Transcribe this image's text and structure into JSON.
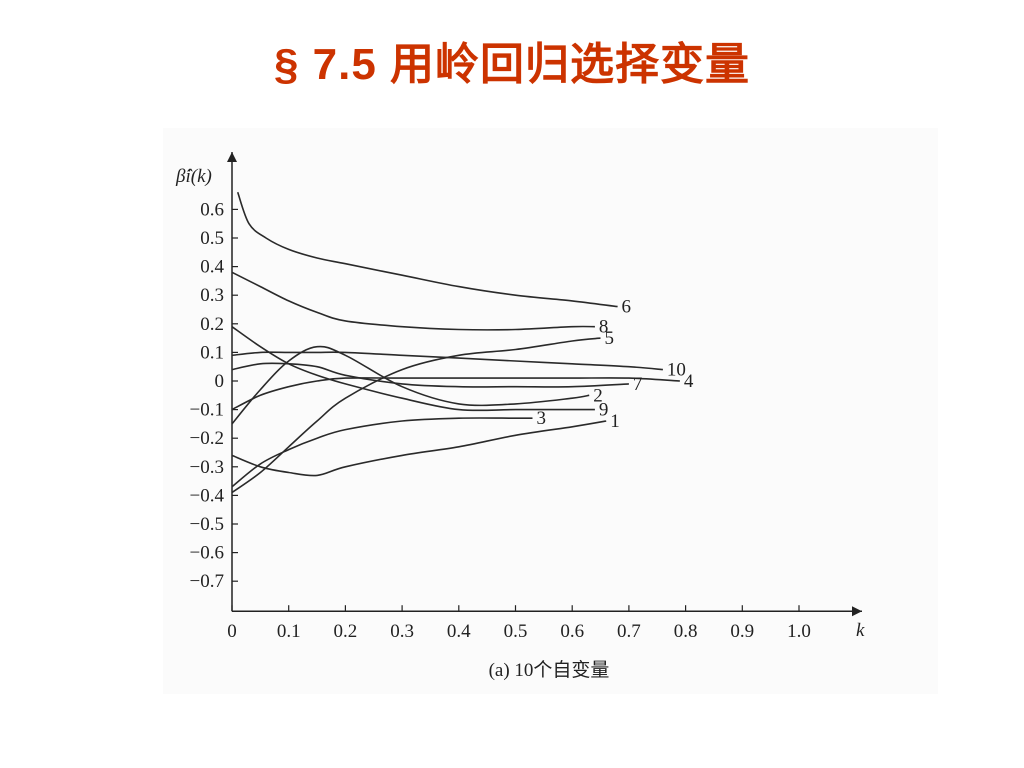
{
  "slide": {
    "title": "§ 7.5  用岭回归选择变量"
  },
  "chart_data": {
    "type": "line",
    "caption": "(a)  10个自变量",
    "xlabel": "k",
    "ylabel": "β̂i(k)",
    "xlim": [
      0,
      1.0
    ],
    "ylim": [
      -0.7,
      0.6
    ],
    "x_ticks": [
      "0",
      "0.1",
      "0.2",
      "0.3",
      "0.4",
      "0.5",
      "0.6",
      "0.7",
      "0.8",
      "0.9",
      "1.0"
    ],
    "y_ticks": [
      "0.6",
      "0.5",
      "0.4",
      "0.3",
      "0.2",
      "0.1",
      "0",
      "−0.1",
      "−0.2",
      "−0.3",
      "−0.4",
      "−0.5",
      "−0.6",
      "−0.7"
    ],
    "grid": false,
    "series": [
      {
        "name": "6",
        "x": [
          0.01,
          0.03,
          0.06,
          0.1,
          0.15,
          0.2,
          0.3,
          0.4,
          0.5,
          0.6,
          0.68
        ],
        "y": [
          0.66,
          0.55,
          0.5,
          0.46,
          0.43,
          0.41,
          0.37,
          0.33,
          0.3,
          0.28,
          0.26
        ]
      },
      {
        "name": "8",
        "x": [
          0,
          0.05,
          0.1,
          0.15,
          0.2,
          0.3,
          0.4,
          0.5,
          0.6,
          0.64
        ],
        "y": [
          0.38,
          0.33,
          0.28,
          0.24,
          0.21,
          0.19,
          0.18,
          0.18,
          0.19,
          0.19
        ]
      },
      {
        "name": "5",
        "x": [
          0,
          0.05,
          0.1,
          0.15,
          0.2,
          0.3,
          0.4,
          0.5,
          0.6,
          0.65
        ],
        "y": [
          -0.39,
          -0.32,
          -0.23,
          -0.14,
          -0.06,
          0.04,
          0.09,
          0.11,
          0.14,
          0.15
        ]
      },
      {
        "name": "10",
        "x": [
          0,
          0.05,
          0.1,
          0.15,
          0.2,
          0.3,
          0.4,
          0.5,
          0.6,
          0.7,
          0.76
        ],
        "y": [
          0.09,
          0.1,
          0.1,
          0.1,
          0.1,
          0.09,
          0.08,
          0.07,
          0.06,
          0.05,
          0.04
        ]
      },
      {
        "name": "4",
        "x": [
          0,
          0.05,
          0.1,
          0.15,
          0.2,
          0.3,
          0.4,
          0.5,
          0.6,
          0.7,
          0.79
        ],
        "y": [
          -0.1,
          -0.05,
          -0.02,
          0,
          0.01,
          0.01,
          0.01,
          0.01,
          0.01,
          0.01,
          0
        ]
      },
      {
        "name": "7",
        "x": [
          0,
          0.05,
          0.1,
          0.15,
          0.2,
          0.3,
          0.4,
          0.5,
          0.6,
          0.7
        ],
        "y": [
          0.04,
          0.06,
          0.06,
          0.05,
          0.02,
          -0.01,
          -0.02,
          -0.02,
          -0.02,
          -0.01
        ]
      },
      {
        "name": "2",
        "x": [
          0,
          0.05,
          0.1,
          0.15,
          0.2,
          0.3,
          0.4,
          0.5,
          0.6,
          0.63
        ],
        "y": [
          -0.15,
          -0.03,
          0.07,
          0.12,
          0.09,
          -0.02,
          -0.08,
          -0.08,
          -0.06,
          -0.05
        ]
      },
      {
        "name": "9",
        "x": [
          0,
          0.05,
          0.1,
          0.15,
          0.2,
          0.3,
          0.4,
          0.5,
          0.6,
          0.64
        ],
        "y": [
          0.19,
          0.12,
          0.06,
          0.02,
          -0.01,
          -0.06,
          -0.1,
          -0.1,
          -0.1,
          -0.1
        ]
      },
      {
        "name": "3",
        "x": [
          0,
          0.05,
          0.1,
          0.15,
          0.2,
          0.3,
          0.4,
          0.5,
          0.53
        ],
        "y": [
          -0.37,
          -0.29,
          -0.24,
          -0.2,
          -0.17,
          -0.14,
          -0.13,
          -0.13,
          -0.13
        ]
      },
      {
        "name": "1",
        "x": [
          0,
          0.05,
          0.1,
          0.15,
          0.2,
          0.3,
          0.4,
          0.5,
          0.6,
          0.66
        ],
        "y": [
          -0.26,
          -0.3,
          -0.32,
          -0.33,
          -0.3,
          -0.26,
          -0.23,
          -0.19,
          -0.16,
          -0.14
        ]
      }
    ]
  }
}
